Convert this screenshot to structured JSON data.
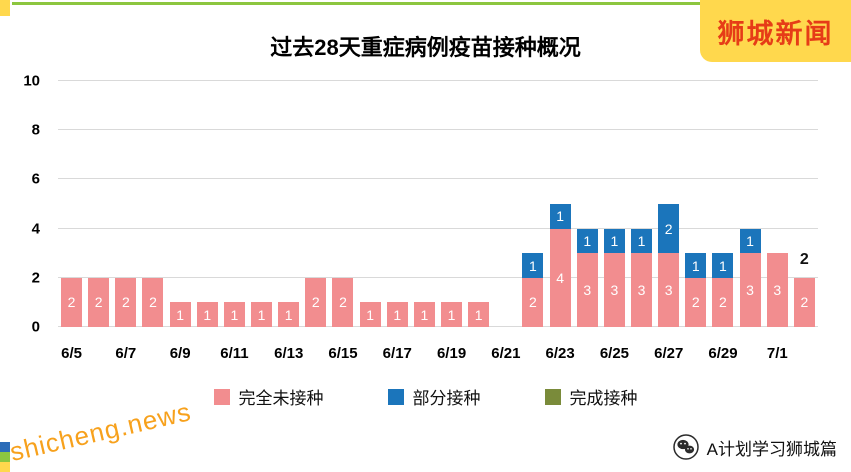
{
  "branding": {
    "site_badge": "狮城新闻",
    "watermark": "shicheng.news",
    "attribution": "A计划学习狮城篇",
    "colors": {
      "badge_bg": "#ffd84d",
      "badge_text": "#e63c17",
      "watermark": "#f7a11c",
      "accent_line": "#8cc63f"
    }
  },
  "chart_data": {
    "type": "bar",
    "stacked": true,
    "title": "过去28天重症病例疫苗接种概况",
    "xlabel": "",
    "ylabel": "",
    "ylim": [
      0,
      10
    ],
    "yticks": [
      0,
      2,
      4,
      6,
      8,
      10
    ],
    "grid": "horizontal",
    "legend_position": "bottom",
    "categories": [
      "6/5",
      "6/6",
      "6/7",
      "6/8",
      "6/9",
      "6/10",
      "6/11",
      "6/12",
      "6/13",
      "6/14",
      "6/15",
      "6/16",
      "6/17",
      "6/18",
      "6/19",
      "6/20",
      "6/21",
      "6/22",
      "6/23",
      "6/24",
      "6/25",
      "6/26",
      "6/27",
      "6/28",
      "6/29",
      "6/30",
      "7/1",
      "7/2"
    ],
    "x_tick_labels": [
      "6/5",
      "6/7",
      "6/9",
      "6/11",
      "6/13",
      "6/15",
      "6/17",
      "6/19",
      "6/21",
      "6/23",
      "6/25",
      "6/27",
      "6/29",
      "7/1"
    ],
    "series": [
      {
        "name": "完全未接种",
        "color": "#f28d8f",
        "values": [
          2,
          2,
          2,
          2,
          1,
          1,
          1,
          1,
          1,
          2,
          2,
          1,
          1,
          1,
          1,
          1,
          0,
          2,
          4,
          3,
          3,
          3,
          3,
          2,
          2,
          3,
          3,
          2
        ]
      },
      {
        "name": "部分接种",
        "color": "#1b75bb",
        "values": [
          0,
          0,
          0,
          0,
          0,
          0,
          0,
          0,
          0,
          0,
          0,
          0,
          0,
          0,
          0,
          0,
          0,
          1,
          1,
          1,
          1,
          1,
          2,
          1,
          1,
          1,
          0,
          0
        ]
      },
      {
        "name": "完成接种",
        "color": "#7a8b3a",
        "values": [
          0,
          0,
          0,
          0,
          0,
          0,
          0,
          0,
          0,
          0,
          0,
          0,
          0,
          0,
          0,
          0,
          0,
          0,
          0,
          0,
          0,
          0,
          0,
          0,
          0,
          0,
          0,
          0
        ]
      }
    ],
    "outside_label": {
      "category_index": 27,
      "text": "2"
    }
  }
}
